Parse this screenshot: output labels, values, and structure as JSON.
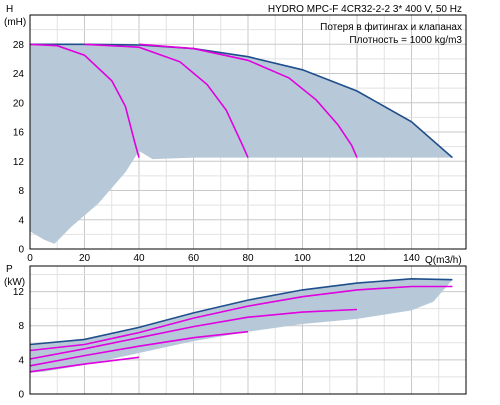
{
  "chart_data": [
    {
      "type": "line",
      "id": "head",
      "title": "HYDRO MPC-F 4CR32-2-2   3* 400 V, 50 Hz",
      "annotations": [
        "Потеря в фитингах и клапанах",
        "Плотность = 1000 kg/m3"
      ],
      "ylabel": "H",
      "yunit": "(mH)",
      "xlabel": "Q(m3/h)",
      "xlim": [
        0,
        160
      ],
      "ylim": [
        0,
        32
      ],
      "xticks": [
        "0",
        "20",
        "40",
        "60",
        "80",
        "100",
        "120",
        "140"
      ],
      "yticks": [
        "0",
        "4",
        "8",
        "12",
        "16",
        "20",
        "24",
        "28"
      ],
      "grid": true,
      "colors": {
        "area": "#b7c9d9",
        "envelope": "#1f4e8c",
        "pump_curves": "#e000e0"
      },
      "area": {
        "upper": [
          [
            0,
            28
          ],
          [
            20,
            28
          ],
          [
            40,
            27.9
          ],
          [
            60,
            27.4
          ],
          [
            80,
            26.3
          ],
          [
            100,
            24.5
          ],
          [
            120,
            21.6
          ],
          [
            140,
            17.4
          ],
          [
            155,
            12.5
          ]
        ],
        "lower": [
          [
            155,
            12.5
          ],
          [
            120,
            12.5
          ],
          [
            100,
            12.5
          ],
          [
            80,
            12.5
          ],
          [
            60,
            12.5
          ],
          [
            45,
            12.3
          ],
          [
            40,
            13.4
          ],
          [
            35,
            10.5
          ],
          [
            25,
            6.2
          ],
          [
            15,
            3
          ],
          [
            9,
            0.7
          ],
          [
            5,
            1.3
          ],
          [
            0,
            2.4
          ]
        ]
      },
      "series": [
        {
          "values": [
            [
              0,
              28
            ],
            [
              20,
              28
            ],
            [
              40,
              27.9
            ],
            [
              60,
              27.4
            ],
            [
              80,
              26.3
            ],
            [
              100,
              24.5
            ],
            [
              120,
              21.6
            ],
            [
              140,
              17.4
            ],
            [
              155,
              12.5
            ]
          ]
        },
        {
          "values": [
            [
              0,
              28
            ],
            [
              10,
              27.8
            ],
            [
              20,
              26.5
            ],
            [
              30,
              23
            ],
            [
              35,
              19.5
            ],
            [
              38.5,
              14.5
            ],
            [
              40,
              12.5
            ]
          ]
        },
        {
          "values": [
            [
              20,
              28
            ],
            [
              40,
              27.6
            ],
            [
              55,
              25.6
            ],
            [
              65,
              22.5
            ],
            [
              72,
              19
            ],
            [
              78,
              14.2
            ],
            [
              80,
              12.5
            ]
          ]
        },
        {
          "values": [
            [
              40,
              28
            ],
            [
              60,
              27.4
            ],
            [
              80,
              25.8
            ],
            [
              95,
              23.4
            ],
            [
              105,
              20.4
            ],
            [
              113,
              17
            ],
            [
              118,
              14.2
            ],
            [
              120,
              12.5
            ]
          ]
        }
      ]
    },
    {
      "type": "line",
      "id": "power",
      "ylabel": "P",
      "yunit": "(kW)",
      "xlim": [
        0,
        160
      ],
      "ylim": [
        0,
        15
      ],
      "yticks": [
        "0",
        "4",
        "8",
        "12"
      ],
      "grid": true,
      "colors": {
        "area": "#b7c9d9",
        "envelope": "#1f4e8c",
        "pump_curves": "#e000e0"
      },
      "area": {
        "upper": [
          [
            0,
            5.8
          ],
          [
            20,
            6.4
          ],
          [
            40,
            7.8
          ],
          [
            60,
            9.5
          ],
          [
            80,
            11
          ],
          [
            100,
            12.2
          ],
          [
            120,
            13
          ],
          [
            140,
            13.5
          ],
          [
            155,
            13.4
          ]
        ],
        "lower": [
          [
            155,
            13.4
          ],
          [
            148,
            10.8
          ],
          [
            140,
            9.8
          ],
          [
            120,
            8.8
          ],
          [
            100,
            8.2
          ],
          [
            80,
            7.3
          ],
          [
            60,
            6.2
          ],
          [
            40,
            4.8
          ],
          [
            20,
            3.4
          ],
          [
            5,
            2.6
          ],
          [
            0,
            2.5
          ]
        ]
      },
      "series": [
        {
          "values": [
            [
              0,
              5.8
            ],
            [
              20,
              6.4
            ],
            [
              40,
              7.8
            ],
            [
              60,
              9.5
            ],
            [
              80,
              11
            ],
            [
              100,
              12.2
            ],
            [
              120,
              13
            ],
            [
              140,
              13.5
            ],
            [
              155,
              13.4
            ]
          ]
        },
        {
          "values": [
            [
              0,
              5.1
            ],
            [
              20,
              5.8
            ],
            [
              40,
              7.2
            ],
            [
              60,
              8.9
            ],
            [
              80,
              10.3
            ],
            [
              100,
              11.4
            ],
            [
              120,
              12.2
            ],
            [
              140,
              12.6
            ],
            [
              155,
              12.6
            ]
          ]
        },
        {
          "values": [
            [
              0,
              4.1
            ],
            [
              20,
              5.3
            ],
            [
              40,
              6.6
            ],
            [
              60,
              7.9
            ],
            [
              80,
              9
            ],
            [
              100,
              9.6
            ],
            [
              120,
              9.9
            ]
          ]
        },
        {
          "values": [
            [
              0,
              3.3
            ],
            [
              20,
              4.5
            ],
            [
              40,
              5.6
            ],
            [
              60,
              6.6
            ],
            [
              80,
              7.3
            ]
          ]
        },
        {
          "values": [
            [
              0,
              2.6
            ],
            [
              20,
              3.5
            ],
            [
              40,
              4.3
            ]
          ]
        }
      ]
    }
  ]
}
